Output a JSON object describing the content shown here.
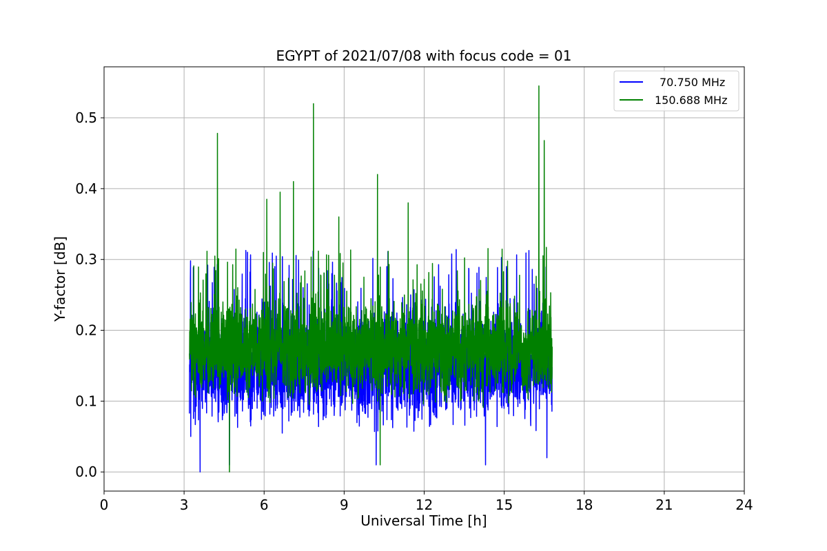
{
  "chart_data": {
    "type": "line",
    "title": "EGYPT of 2021/07/08 with focus code = 01",
    "xlabel": "Universal Time [h]",
    "ylabel": "Y-factor [dB]",
    "xlim": [
      0,
      24
    ],
    "ylim": [
      -0.027,
      0.572
    ],
    "xticks": [
      0,
      3,
      6,
      9,
      12,
      15,
      18,
      21,
      24
    ],
    "xtick_labels": [
      "0",
      "3",
      "6",
      "9",
      "12",
      "15",
      "18",
      "21",
      "24"
    ],
    "yticks": [
      0.0,
      0.1,
      0.2,
      0.3,
      0.4,
      0.5
    ],
    "ytick_labels": [
      "0.0",
      "0.1",
      "0.2",
      "0.3",
      "0.4",
      "0.5"
    ],
    "grid": true,
    "legend_position": "top-right",
    "x_range_of_data": [
      3.2,
      16.8
    ],
    "series": [
      {
        "name": "70.750 MHz",
        "color": "#0000ff",
        "baseline_range": [
          0.04,
          0.26
        ],
        "notable_points": [
          {
            "x": 3.25,
            "y": 0.05
          },
          {
            "x": 3.6,
            "y": 0.0
          },
          {
            "x": 4.7,
            "y": 0.01
          },
          {
            "x": 6.4,
            "y": 0.29
          },
          {
            "x": 10.2,
            "y": 0.01
          },
          {
            "x": 10.6,
            "y": 0.29
          },
          {
            "x": 14.3,
            "y": 0.01
          },
          {
            "x": 16.6,
            "y": 0.02
          }
        ]
      },
      {
        "name": "150.688 MHz",
        "color": "#008000",
        "baseline_range": [
          0.08,
          0.27
        ],
        "notable_points": [
          {
            "x": 4.25,
            "y": 0.478
          },
          {
            "x": 4.7,
            "y": 0.0
          },
          {
            "x": 6.1,
            "y": 0.385
          },
          {
            "x": 6.6,
            "y": 0.395
          },
          {
            "x": 7.1,
            "y": 0.41
          },
          {
            "x": 7.85,
            "y": 0.52
          },
          {
            "x": 8.8,
            "y": 0.36
          },
          {
            "x": 10.25,
            "y": 0.42
          },
          {
            "x": 10.35,
            "y": 0.01
          },
          {
            "x": 11.4,
            "y": 0.38
          },
          {
            "x": 16.3,
            "y": 0.545
          },
          {
            "x": 16.5,
            "y": 0.468
          }
        ]
      }
    ]
  }
}
